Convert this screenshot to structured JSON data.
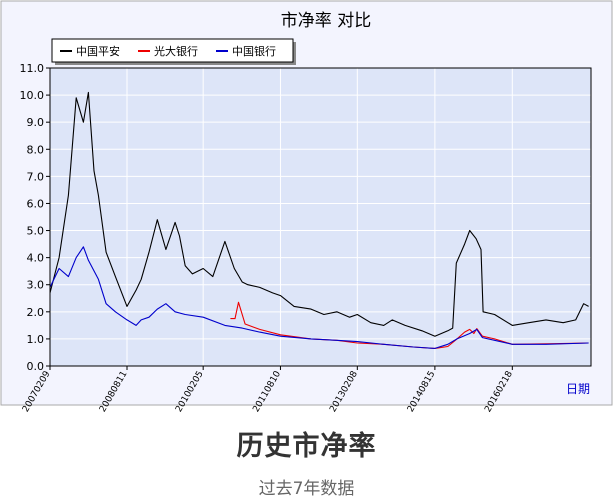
{
  "page": {
    "caption_title": "历史市净率",
    "caption_subtitle": "过去7年数据"
  },
  "colors": {
    "panel_bg": "#f3f4fe",
    "plot_bg": "#dde5f8",
    "grid": "#ffffff",
    "axis_label": "#0000cc"
  },
  "chart_data": {
    "type": "line",
    "title": "市净率  对比",
    "xlabel": "日期",
    "ylabel": "",
    "ylim": [
      0,
      11
    ],
    "y_ticks": [
      "0.0",
      "1.0",
      "2.0",
      "3.0",
      "4.0",
      "5.0",
      "6.0",
      "7.0",
      "8.0",
      "9.0",
      "10.0",
      "11.0"
    ],
    "x_tick_labels": [
      "20070209",
      "20080811",
      "20100205",
      "20110810",
      "20130208",
      "20140815",
      "20160218"
    ],
    "grid": true,
    "legend_position": "top-left",
    "series": [
      {
        "name": "中国平安",
        "color": "#000000",
        "x": [
          "2007-02-09",
          "2007-04-15",
          "2007-06-20",
          "2007-08-15",
          "2007-10-05",
          "2007-11-10",
          "2007-12-20",
          "2008-01-20",
          "2008-03-15",
          "2008-05-20",
          "2008-08-11",
          "2008-10-15",
          "2008-11-20",
          "2009-01-15",
          "2009-03-15",
          "2009-05-15",
          "2009-07-20",
          "2009-08-20",
          "2009-09-30",
          "2009-11-20",
          "2010-02-05",
          "2010-04-15",
          "2010-07-10",
          "2010-09-15",
          "2010-11-10",
          "2010-12-20",
          "2011-03-15",
          "2011-06-15",
          "2011-08-10",
          "2011-11-15",
          "2012-03-15",
          "2012-06-15",
          "2012-09-15",
          "2012-12-15",
          "2013-02-08",
          "2013-05-15",
          "2013-08-15",
          "2013-10-15",
          "2014-01-15",
          "2014-05-15",
          "2014-08-15",
          "2014-11-15",
          "2014-12-20",
          "2015-01-15",
          "2015-03-15",
          "2015-04-20",
          "2015-06-05",
          "2015-07-10",
          "2015-07-25",
          "2015-10-15",
          "2016-02-18",
          "2016-06-15",
          "2016-10-15",
          "2017-02-15",
          "2017-05-15",
          "2017-07-10",
          "2017-08-15"
        ],
        "values": [
          2.7,
          4.0,
          6.3,
          9.9,
          9.0,
          10.1,
          7.2,
          6.3,
          4.2,
          3.3,
          2.2,
          2.8,
          3.2,
          4.2,
          5.4,
          4.3,
          5.3,
          4.8,
          3.7,
          3.4,
          3.6,
          3.3,
          4.6,
          3.6,
          3.1,
          3.0,
          2.9,
          2.7,
          2.6,
          2.2,
          2.1,
          1.9,
          2.0,
          1.8,
          1.9,
          1.6,
          1.5,
          1.7,
          1.5,
          1.3,
          1.1,
          1.3,
          1.4,
          3.8,
          4.5,
          5.0,
          4.7,
          4.3,
          2.0,
          1.9,
          1.5,
          1.6,
          1.7,
          1.6,
          1.7,
          2.3,
          2.2
        ]
      },
      {
        "name": "光大银行",
        "color": "#ee0000",
        "x": [
          "2010-08-18",
          "2010-09-20",
          "2010-10-15",
          "2010-12-01",
          "2011-03-15",
          "2011-08-10",
          "2012-03-15",
          "2012-09-15",
          "2013-02-08",
          "2013-08-15",
          "2014-03-15",
          "2014-08-15",
          "2014-11-15",
          "2015-01-20",
          "2015-03-15",
          "2015-04-20",
          "2015-05-20",
          "2015-06-10",
          "2015-07-20",
          "2015-10-15",
          "2016-02-18",
          "2016-10-15",
          "2017-08-15"
        ],
        "values": [
          1.75,
          1.75,
          2.35,
          1.55,
          1.35,
          1.15,
          1.0,
          0.95,
          0.85,
          0.8,
          0.7,
          0.65,
          0.72,
          1.0,
          1.25,
          1.35,
          1.2,
          1.38,
          1.1,
          1.0,
          0.8,
          0.82,
          0.85
        ]
      },
      {
        "name": "中国银行",
        "color": "#0000cc",
        "x": [
          "2007-02-09",
          "2007-04-15",
          "2007-06-20",
          "2007-08-15",
          "2007-10-05",
          "2007-11-10",
          "2008-01-20",
          "2008-03-15",
          "2008-05-20",
          "2008-08-11",
          "2008-10-15",
          "2008-11-20",
          "2009-01-15",
          "2009-03-15",
          "2009-05-15",
          "2009-07-20",
          "2009-09-30",
          "2010-02-05",
          "2010-07-10",
          "2010-11-10",
          "2011-03-15",
          "2011-08-10",
          "2012-03-15",
          "2012-09-15",
          "2013-02-08",
          "2013-08-15",
          "2014-03-15",
          "2014-08-15",
          "2014-11-15",
          "2015-01-20",
          "2015-04-20",
          "2015-06-10",
          "2015-07-20",
          "2015-10-15",
          "2016-02-18",
          "2016-10-15",
          "2017-08-15"
        ],
        "values": [
          2.9,
          3.6,
          3.3,
          4.0,
          4.4,
          3.9,
          3.2,
          2.3,
          2.0,
          1.7,
          1.5,
          1.7,
          1.8,
          2.1,
          2.3,
          2.0,
          1.9,
          1.8,
          1.5,
          1.4,
          1.25,
          1.1,
          1.0,
          0.95,
          0.9,
          0.8,
          0.7,
          0.65,
          0.8,
          1.0,
          1.2,
          1.35,
          1.05,
          0.95,
          0.8,
          0.8,
          0.85
        ]
      }
    ]
  }
}
